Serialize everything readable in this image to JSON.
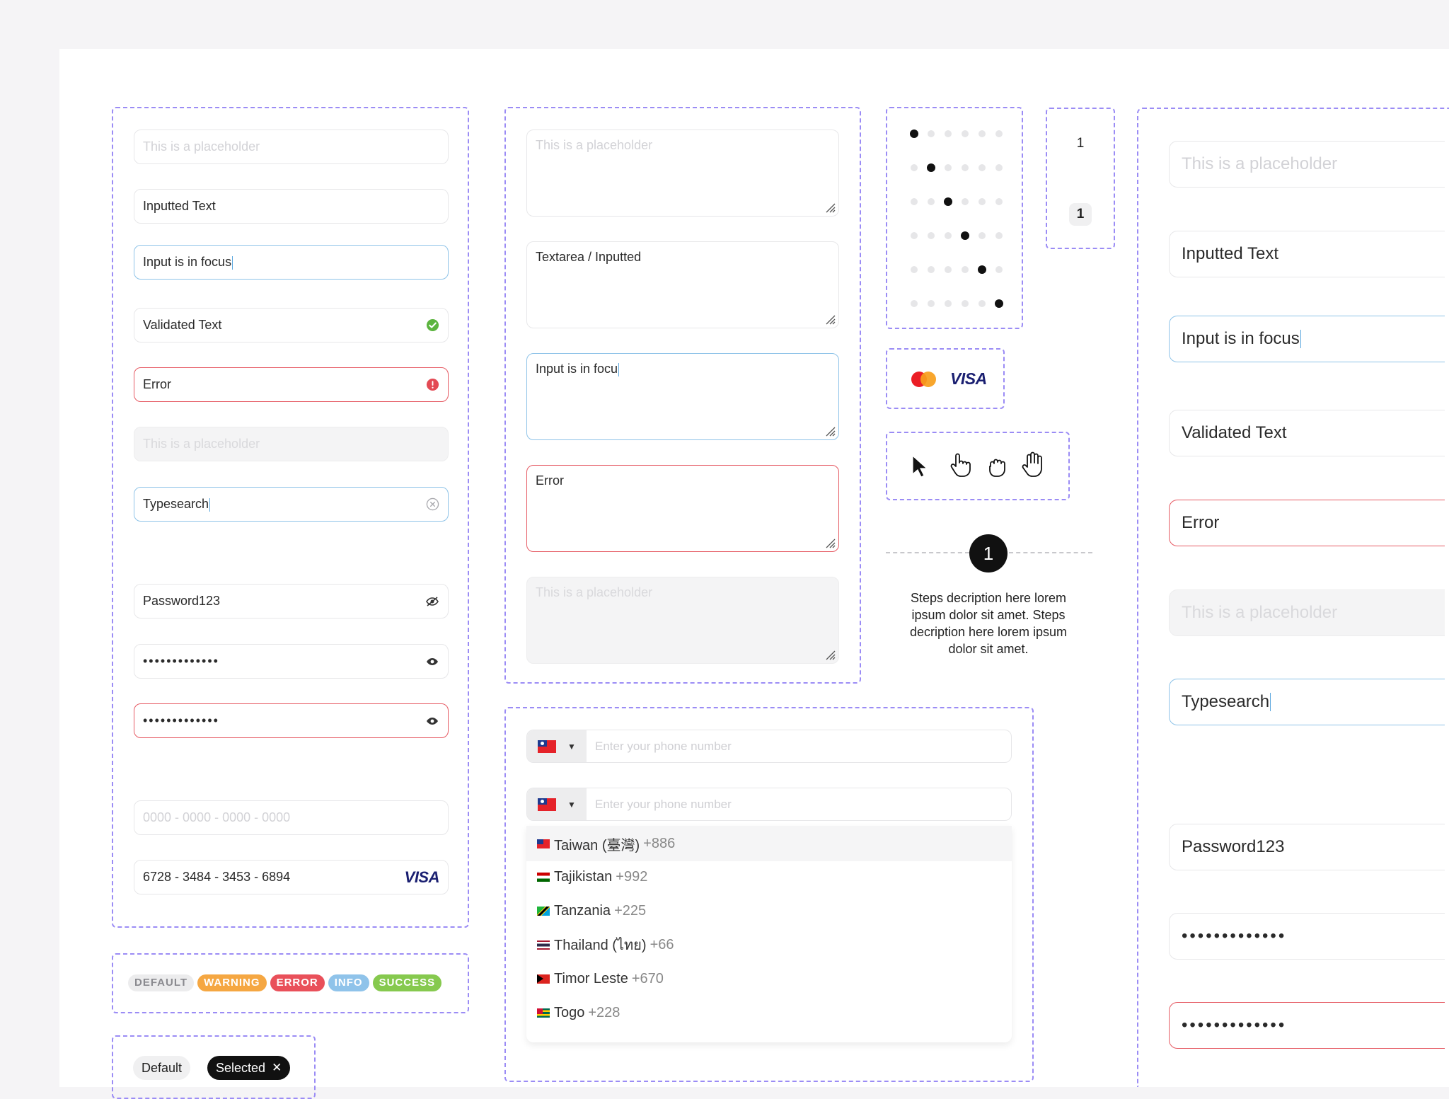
{
  "inputs_panel": {
    "placeholder_1": "This is a placeholder",
    "inputted": "Inputted Text",
    "focus": "Input is in focus",
    "validated": "Validated Text",
    "error": "Error",
    "disabled_placeholder": "This is a placeholder",
    "typesearch": "Typesearch",
    "password_visible": "Password123",
    "password_hidden": "•••••••••••••",
    "password_error": "•••••••••••••",
    "card_placeholder": "0000 - 0000 - 0000 - 0000",
    "card_number": "6728 - 3484 - 3453 - 6894",
    "card_brand": "VISA"
  },
  "tags": [
    "DEFAULT",
    "WARNING",
    "ERROR",
    "INFO",
    "SUCCESS"
  ],
  "tag_colors": [
    "#ececed",
    "#f5a742",
    "#e9505a",
    "#8fc3ea",
    "#86c94e"
  ],
  "chips": {
    "default": "Default",
    "selected": "Selected"
  },
  "textarea_panel": {
    "placeholder": "This is a placeholder",
    "inputted": "Textarea / Inputted",
    "focus": "Input is in focu",
    "error": "Error",
    "disabled_placeholder": "This is a placeholder"
  },
  "pagination_dots": {
    "rows": 6,
    "cols": 6,
    "active_columns": [
      0,
      1,
      2,
      3,
      4,
      5
    ]
  },
  "counter": {
    "plain": "1",
    "badge": "1"
  },
  "payment": {
    "visa": "VISA",
    "brand_colors": {
      "mastercard_red": "#eb1d25",
      "mastercard_orange": "#f79e1b",
      "visa_blue": "#1a1f71"
    }
  },
  "cursors": [
    "arrow-cursor-icon",
    "pointer-hand-icon",
    "open-hand-icon",
    "grab-hand-icon"
  ],
  "step": {
    "number": "1",
    "description": "Steps decription here lorem ipsum dolor sit amet. Steps decription here lorem ipsum dolor sit amet."
  },
  "phone_panel": {
    "placeholder": "Enter your phone number",
    "countries": [
      {
        "name": "Taiwan (臺灣)",
        "code": "+886"
      },
      {
        "name": "Tajikistan",
        "code": "+992"
      },
      {
        "name": "Tanzania",
        "code": "+225"
      },
      {
        "name": "Thailand (ไทย)",
        "code": "+66"
      },
      {
        "name": "Timor Leste",
        "code": "+670"
      },
      {
        "name": "Togo",
        "code": "+228"
      }
    ]
  },
  "large_panel": {
    "placeholder_1": "This is a placeholder",
    "inputted": "Inputted Text",
    "focus": "Input is in focus",
    "validated": "Validated Text",
    "error": "Error",
    "disabled_placeholder": "This is a placeholder",
    "typesearch": "Typesearch",
    "password_visible": "Password123",
    "password_hidden": "•••••••••••••",
    "password_error": "•••••••••••••"
  }
}
